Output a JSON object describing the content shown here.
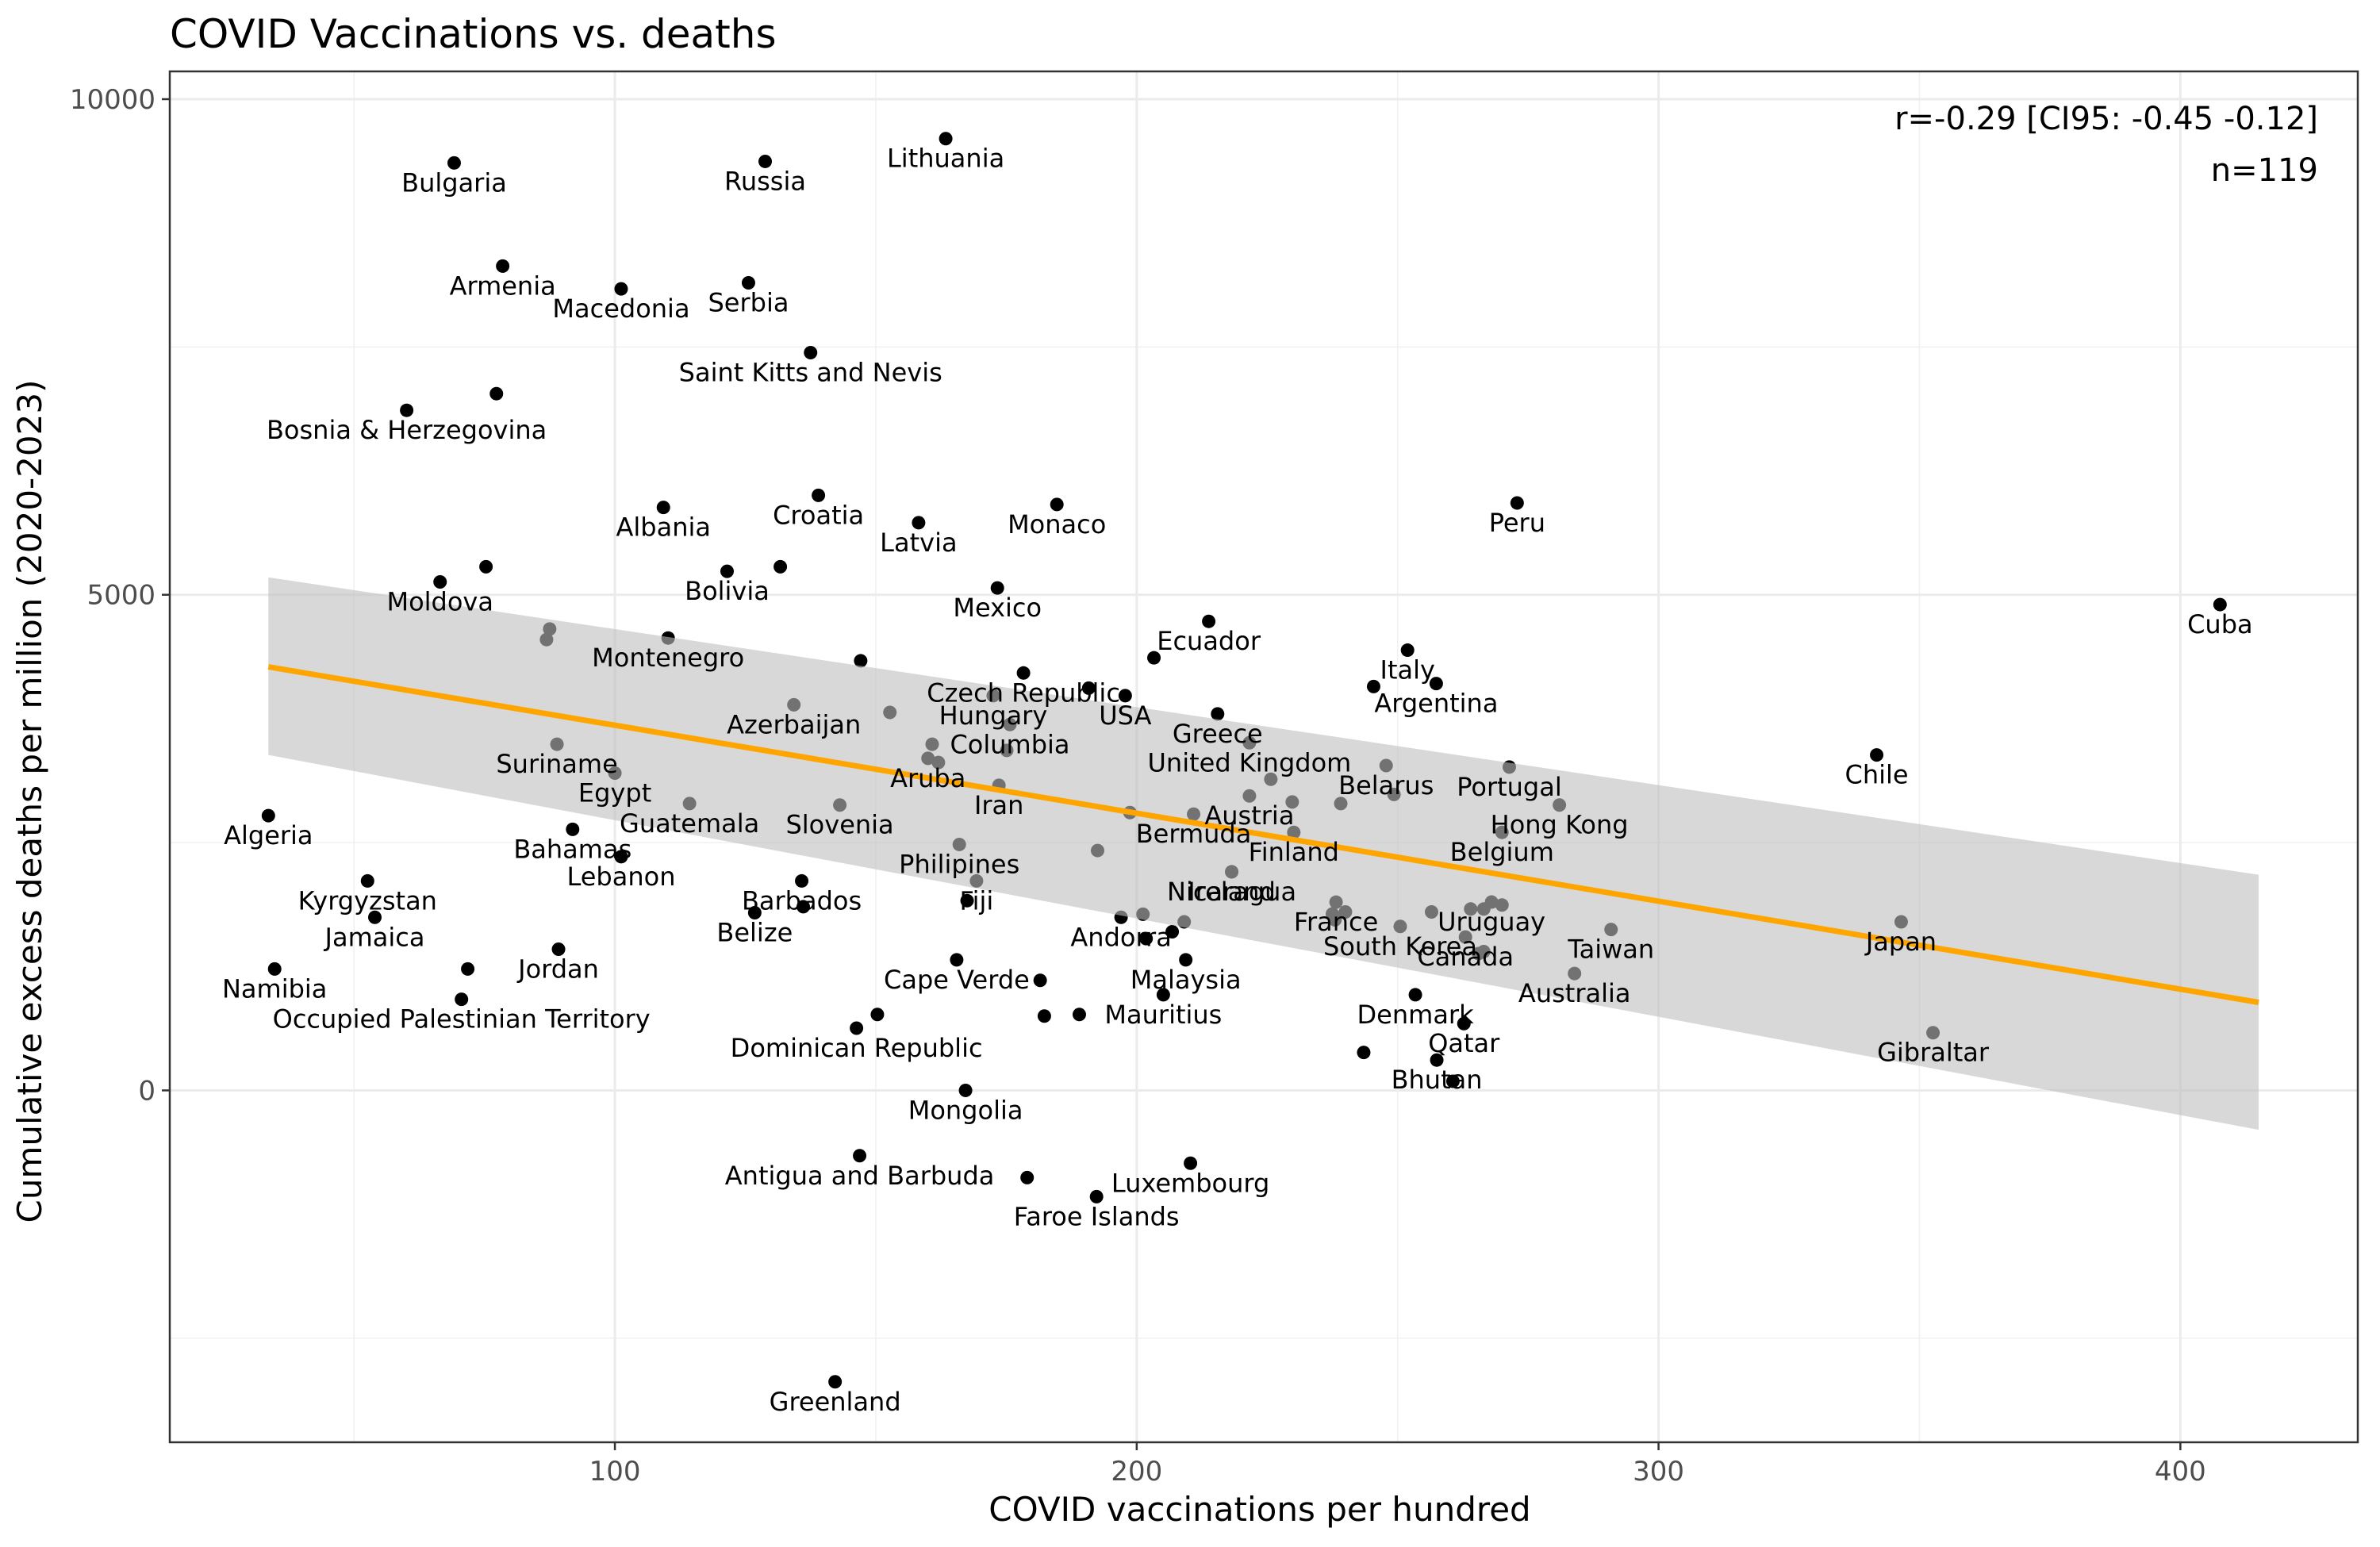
{
  "chart_data": {
    "type": "scatter",
    "title": "COVID Vaccinations vs. deaths",
    "xlabel": "COVID vaccinations per hundred",
    "ylabel": "Cumulative excess deaths per million (2020-2023)",
    "xlim": [
      14.7,
      434
    ],
    "ylim": [
      -3550,
      10280
    ],
    "xticks": [
      100,
      200,
      300,
      400
    ],
    "yticks": [
      0,
      5000,
      10000
    ],
    "grid": true,
    "legend": "none",
    "annotations": [
      "r=-0.29 [CI95: -0.45 -0.12]",
      "n=119"
    ],
    "colors": {
      "points": "#000000",
      "fit_line": "#FFA500",
      "ci_band": "#BEBEBE"
    },
    "fit_line": {
      "x": [
        33.6,
        415.0
      ],
      "y": [
        4273,
        888
      ]
    },
    "ci_band": {
      "x": [
        33.6,
        415.0
      ],
      "upper": [
        5176,
        2175
      ],
      "lower": [
        3384,
        -398
      ]
    },
    "points": [
      {
        "label": "Bulgaria",
        "x": 69.2,
        "y": 9357
      },
      {
        "label": "Russia",
        "x": 128.8,
        "y": 9372
      },
      {
        "label": "Lithuania",
        "x": 163.4,
        "y": 9602
      },
      {
        "label": "Armenia",
        "x": 78.5,
        "y": 8316
      },
      {
        "label": "Macedonia",
        "x": 101.2,
        "y": 8086
      },
      {
        "label": "Serbia",
        "x": 125.6,
        "y": 8147
      },
      {
        "label": "Saint Kitts and Nevis",
        "x": 137.5,
        "y": 7443
      },
      {
        "label": "Bosnia & Herzegovina",
        "x": 60.1,
        "y": 6861
      },
      {
        "label": "",
        "x": 77.3,
        "y": 7029
      },
      {
        "label": "Albania",
        "x": 109.3,
        "y": 5881
      },
      {
        "label": "Croatia",
        "x": 139.0,
        "y": 6003
      },
      {
        "label": "Latvia",
        "x": 158.2,
        "y": 5727
      },
      {
        "label": "Monaco",
        "x": 184.7,
        "y": 5911
      },
      {
        "label": "Peru",
        "x": 272.9,
        "y": 5926
      },
      {
        "label": "Moldova",
        "x": 66.5,
        "y": 5130
      },
      {
        "label": "",
        "x": 75.3,
        "y": 5283
      },
      {
        "label": "Bolivia",
        "x": 121.5,
        "y": 5237
      },
      {
        "label": "",
        "x": 131.7,
        "y": 5283
      },
      {
        "label": "Mexico",
        "x": 173.3,
        "y": 5069
      },
      {
        "label": "Cuba",
        "x": 407.6,
        "y": 4901
      },
      {
        "label": "Ecuador",
        "x": 213.8,
        "y": 4732
      },
      {
        "label": "",
        "x": 87.5,
        "y": 4655
      },
      {
        "label": "",
        "x": 86.9,
        "y": 4548
      },
      {
        "label": "Montenegro",
        "x": 110.2,
        "y": 4564
      },
      {
        "label": "",
        "x": 147.1,
        "y": 4334
      },
      {
        "label": "Italy",
        "x": 251.9,
        "y": 4441
      },
      {
        "label": "",
        "x": 203.3,
        "y": 4364
      },
      {
        "label": "Czech Republic",
        "x": 178.3,
        "y": 4211
      },
      {
        "label": "Argentina",
        "x": 257.4,
        "y": 4104
      },
      {
        "label": "",
        "x": 245.4,
        "y": 4074
      },
      {
        "label": "",
        "x": 190.8,
        "y": 4058
      },
      {
        "label": "USA",
        "x": 197.8,
        "y": 3982
      },
      {
        "label": "Hungary",
        "x": 172.5,
        "y": 3982
      },
      {
        "label": "Azerbaijan",
        "x": 134.3,
        "y": 3890
      },
      {
        "label": "",
        "x": 152.7,
        "y": 3813
      },
      {
        "label": "Greece",
        "x": 215.5,
        "y": 3798
      },
      {
        "label": "Columbia",
        "x": 175.7,
        "y": 3691
      },
      {
        "label": "Chile",
        "x": 341.8,
        "y": 3384
      },
      {
        "label": "Suriname",
        "x": 88.9,
        "y": 3492
      },
      {
        "label": "",
        "x": 160.8,
        "y": 3492
      },
      {
        "label": "",
        "x": 162.0,
        "y": 3308
      },
      {
        "label": "",
        "x": 175.1,
        "y": 3430
      },
      {
        "label": "United Kingdom",
        "x": 221.6,
        "y": 3507
      },
      {
        "label": "Belarus",
        "x": 247.8,
        "y": 3277
      },
      {
        "label": "Portugal",
        "x": 271.4,
        "y": 3262
      },
      {
        "label": "Egypt",
        "x": 100.0,
        "y": 3201
      },
      {
        "label": "",
        "x": 225.7,
        "y": 3139
      },
      {
        "label": "Aruba",
        "x": 160.0,
        "y": 3350
      },
      {
        "label": "Iran",
        "x": 173.6,
        "y": 3078
      },
      {
        "label": "Austria",
        "x": 221.6,
        "y": 2971
      },
      {
        "label": "",
        "x": 229.8,
        "y": 2910
      },
      {
        "label": "",
        "x": 249.3,
        "y": 2986
      },
      {
        "label": "Hong Kong",
        "x": 281.0,
        "y": 2879
      },
      {
        "label": "",
        "x": 239.1,
        "y": 2894
      },
      {
        "label": "Guatemala",
        "x": 114.3,
        "y": 2894
      },
      {
        "label": "Slovenia",
        "x": 143.1,
        "y": 2879
      },
      {
        "label": "Bermuda",
        "x": 210.9,
        "y": 2787
      },
      {
        "label": "",
        "x": 198.7,
        "y": 2803
      },
      {
        "label": "Finland",
        "x": 230.1,
        "y": 2603
      },
      {
        "label": "Algeria",
        "x": 33.6,
        "y": 2772
      },
      {
        "label": "Bahamas",
        "x": 91.9,
        "y": 2634
      },
      {
        "label": "Belgium",
        "x": 270.0,
        "y": 2603
      },
      {
        "label": "Philipines",
        "x": 166.0,
        "y": 2481
      },
      {
        "label": "",
        "x": 192.5,
        "y": 2420
      },
      {
        "label": "Lebanon",
        "x": 101.2,
        "y": 2358
      },
      {
        "label": "Nicaragua",
        "x": 218.2,
        "y": 2205
      },
      {
        "label": "Ireland",
        "x": 218.2,
        "y": 2205
      },
      {
        "label": "Kyrgyzstan",
        "x": 52.6,
        "y": 2113
      },
      {
        "label": "Barbados",
        "x": 135.8,
        "y": 2113
      },
      {
        "label": "",
        "x": 136.1,
        "y": 1853
      },
      {
        "label": "Fiji",
        "x": 169.3,
        "y": 2113
      },
      {
        "label": "",
        "x": 167.5,
        "y": 1914
      },
      {
        "label": "Uruguay",
        "x": 268.0,
        "y": 1900
      },
      {
        "label": "",
        "x": 264.0,
        "y": 1830
      },
      {
        "label": "",
        "x": 266.5,
        "y": 1830
      },
      {
        "label": "",
        "x": 270.0,
        "y": 1870
      },
      {
        "label": "",
        "x": 256.5,
        "y": 1800
      },
      {
        "label": "Jamaica",
        "x": 54.0,
        "y": 1746
      },
      {
        "label": "Belize",
        "x": 126.8,
        "y": 1792
      },
      {
        "label": "Andorra",
        "x": 197.0,
        "y": 1746
      },
      {
        "label": "",
        "x": 201.2,
        "y": 1777
      },
      {
        "label": "",
        "x": 209.1,
        "y": 1700
      },
      {
        "label": "",
        "x": 206.8,
        "y": 1600
      },
      {
        "label": "",
        "x": 201.8,
        "y": 1531
      },
      {
        "label": "France",
        "x": 238.2,
        "y": 1899
      },
      {
        "label": "",
        "x": 237.5,
        "y": 1780
      },
      {
        "label": "",
        "x": 240.0,
        "y": 1800
      },
      {
        "label": "",
        "x": 238.0,
        "y": 1720
      },
      {
        "label": "Canada",
        "x": 263.0,
        "y": 1547
      },
      {
        "label": "South Korea",
        "x": 250.5,
        "y": 1654
      },
      {
        "label": "",
        "x": 265.5,
        "y": 1380
      },
      {
        "label": "",
        "x": 266.5,
        "y": 1400
      },
      {
        "label": "Taiwan",
        "x": 290.9,
        "y": 1623
      },
      {
        "label": "Japan",
        "x": 346.5,
        "y": 1700
      },
      {
        "label": "Jordan",
        "x": 89.2,
        "y": 1424
      },
      {
        "label": "Cape Verde",
        "x": 165.5,
        "y": 1317
      },
      {
        "label": "",
        "x": 181.5,
        "y": 1110
      },
      {
        "label": "Malaysia",
        "x": 209.4,
        "y": 1317
      },
      {
        "label": "Namibia",
        "x": 34.8,
        "y": 1225
      },
      {
        "label": "",
        "x": 71.8,
        "y": 1225
      },
      {
        "label": "Australia",
        "x": 283.9,
        "y": 1179
      },
      {
        "label": "Occupied Palestinian Territory",
        "x": 70.6,
        "y": 919
      },
      {
        "label": "Mauritius",
        "x": 205.1,
        "y": 965
      },
      {
        "label": "",
        "x": 182.3,
        "y": 750
      },
      {
        "label": "",
        "x": 189.0,
        "y": 766
      },
      {
        "label": "Denmark",
        "x": 253.4,
        "y": 965
      },
      {
        "label": "Dominican Republic",
        "x": 146.3,
        "y": 628
      },
      {
        "label": "",
        "x": 150.3,
        "y": 766
      },
      {
        "label": "Gibraltar",
        "x": 352.6,
        "y": 582
      },
      {
        "label": "Qatar",
        "x": 262.7,
        "y": 674
      },
      {
        "label": "",
        "x": 243.5,
        "y": 383
      },
      {
        "label": "Bhutan",
        "x": 257.5,
        "y": 306
      },
      {
        "label": "",
        "x": 260.6,
        "y": 92
      },
      {
        "label": "Mongolia",
        "x": 167.2,
        "y": 0
      },
      {
        "label": "Antigua and Barbuda",
        "x": 146.9,
        "y": -659
      },
      {
        "label": "",
        "x": 179.0,
        "y": -880
      },
      {
        "label": "Faroe Islands",
        "x": 192.3,
        "y": -1072
      },
      {
        "label": "Luxembourg",
        "x": 210.3,
        "y": -735
      },
      {
        "label": "Greenland",
        "x": 142.2,
        "y": -2940
      }
    ]
  }
}
